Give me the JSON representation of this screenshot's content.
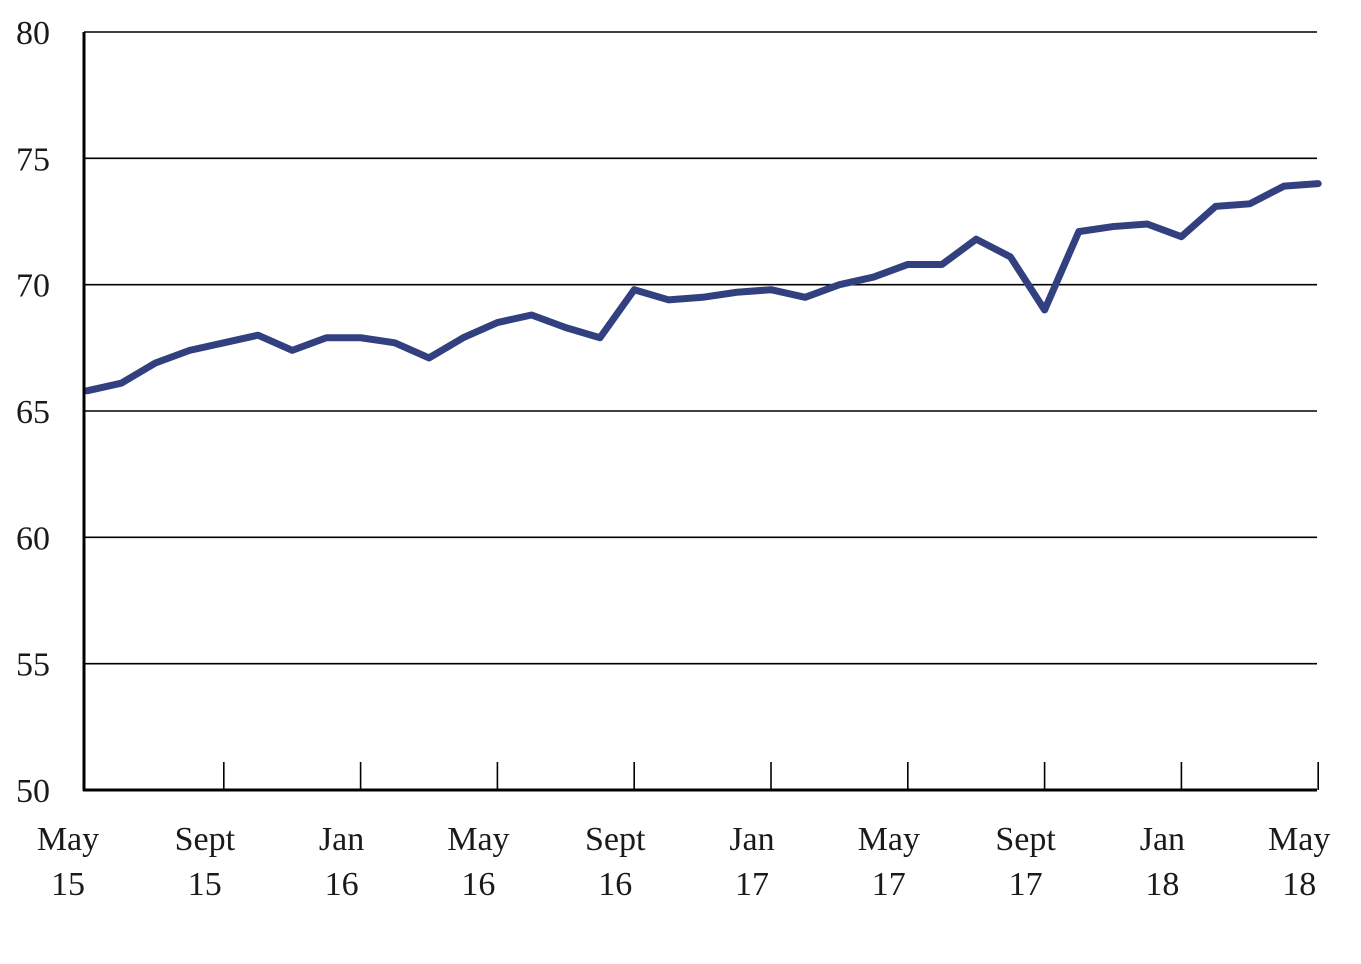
{
  "chart_data": {
    "type": "line",
    "title": "",
    "xlabel": "",
    "ylabel": "",
    "ylim": [
      50,
      80
    ],
    "yticks": [
      50,
      55,
      60,
      65,
      70,
      75,
      80
    ],
    "grid": "horizontal",
    "x_tick_labels": [
      {
        "month": "May",
        "year": "15",
        "date": "2015-05"
      },
      {
        "month": "Sept",
        "year": "15",
        "date": "2015-09"
      },
      {
        "month": "Jan",
        "year": "16",
        "date": "2016-01"
      },
      {
        "month": "May",
        "year": "16",
        "date": "2016-05"
      },
      {
        "month": "Sept",
        "year": "16",
        "date": "2016-09"
      },
      {
        "month": "Jan",
        "year": "17",
        "date": "2017-01"
      },
      {
        "month": "May",
        "year": "17",
        "date": "2017-05"
      },
      {
        "month": "Sept",
        "year": "17",
        "date": "2017-09"
      },
      {
        "month": "Jan",
        "year": "18",
        "date": "2018-01"
      },
      {
        "month": "May",
        "year": "18",
        "date": "2018-05"
      }
    ],
    "x": [
      "2015-05",
      "2015-06",
      "2015-07",
      "2015-08",
      "2015-09",
      "2015-10",
      "2015-11",
      "2015-12",
      "2016-01",
      "2016-02",
      "2016-03",
      "2016-04",
      "2016-05",
      "2016-06",
      "2016-07",
      "2016-08",
      "2016-09",
      "2016-10",
      "2016-11",
      "2016-12",
      "2017-01",
      "2017-02",
      "2017-03",
      "2017-04",
      "2017-05",
      "2017-06",
      "2017-07",
      "2017-08",
      "2017-09",
      "2017-10",
      "2017-11",
      "2017-12",
      "2018-01",
      "2018-02",
      "2018-03",
      "2018-04",
      "2018-05",
      "2018-06"
    ],
    "series": [
      {
        "color": "#33407f",
        "values": [
          65.8,
          66.1,
          66.9,
          67.4,
          67.7,
          68.0,
          67.4,
          67.9,
          67.9,
          67.7,
          67.1,
          67.9,
          68.5,
          68.8,
          68.3,
          67.9,
          69.8,
          69.4,
          69.5,
          69.7,
          69.8,
          69.5,
          70.0,
          70.3,
          70.8,
          70.8,
          71.8,
          71.1,
          69.0,
          72.1,
          72.3,
          72.4,
          71.9,
          73.1,
          73.2,
          73.9,
          74.0,
          null
        ]
      }
    ]
  }
}
